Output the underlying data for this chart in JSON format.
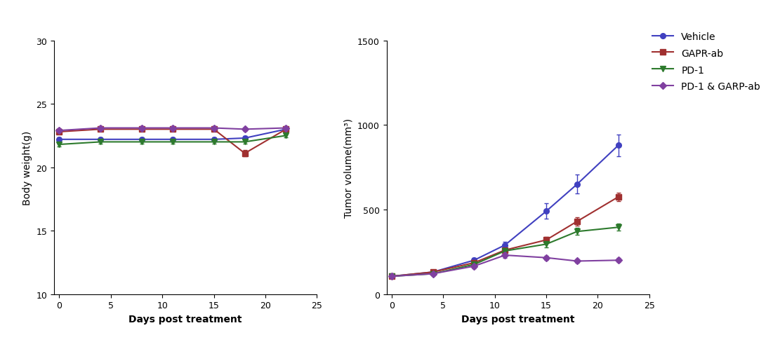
{
  "days": [
    0,
    4,
    8,
    11,
    15,
    18,
    22
  ],
  "bw_vehicle": [
    22.2,
    22.2,
    22.2,
    22.2,
    22.2,
    22.3,
    23.0
  ],
  "bw_gapr": [
    22.8,
    23.0,
    23.0,
    23.0,
    23.0,
    21.1,
    23.0
  ],
  "bw_pd1": [
    21.8,
    22.0,
    22.0,
    22.0,
    22.0,
    22.0,
    22.5
  ],
  "bw_pd1garp": [
    22.9,
    23.1,
    23.1,
    23.1,
    23.1,
    23.0,
    23.1
  ],
  "bw_vehicle_err": [
    0.15,
    0.15,
    0.15,
    0.15,
    0.15,
    0.15,
    0.15
  ],
  "bw_gapr_err": [
    0.15,
    0.15,
    0.15,
    0.15,
    0.15,
    0.25,
    0.15
  ],
  "bw_pd1_err": [
    0.15,
    0.15,
    0.15,
    0.15,
    0.15,
    0.15,
    0.15
  ],
  "bw_pd1garp_err": [
    0.15,
    0.15,
    0.15,
    0.15,
    0.15,
    0.15,
    0.15
  ],
  "tv_vehicle": [
    105,
    130,
    200,
    290,
    490,
    650,
    880
  ],
  "tv_gapr": [
    105,
    130,
    185,
    260,
    320,
    430,
    575
  ],
  "tv_pd1": [
    105,
    120,
    175,
    255,
    295,
    370,
    395
  ],
  "tv_pd1garp": [
    105,
    120,
    165,
    230,
    215,
    195,
    200
  ],
  "tv_vehicle_err": [
    8,
    8,
    12,
    18,
    45,
    55,
    65
  ],
  "tv_gapr_err": [
    8,
    8,
    12,
    18,
    18,
    25,
    25
  ],
  "tv_pd1_err": [
    8,
    8,
    12,
    18,
    18,
    20,
    20
  ],
  "tv_pd1garp_err": [
    8,
    8,
    12,
    18,
    12,
    12,
    12
  ],
  "color_vehicle": "#4040c0",
  "color_gapr": "#a03030",
  "color_pd1": "#2d7a2d",
  "color_pd1garp": "#8040a0",
  "label_vehicle": "Vehicle",
  "label_gapr": "GAPR-ab",
  "label_pd1": "PD-1",
  "label_pd1garp": "PD-1 & GARP-ab",
  "bw_ylabel": "Body weight(g)",
  "tv_ylabel": "Tumor volume(mm³)",
  "xlabel": "Days post treatment",
  "bw_ylim": [
    10,
    30
  ],
  "tv_ylim": [
    0,
    1500
  ],
  "bw_yticks": [
    10,
    15,
    20,
    25,
    30
  ],
  "tv_yticks": [
    0,
    500,
    1000,
    1500
  ],
  "xlim": [
    -0.5,
    25
  ],
  "xticks": [
    0,
    5,
    10,
    15,
    20,
    25
  ]
}
